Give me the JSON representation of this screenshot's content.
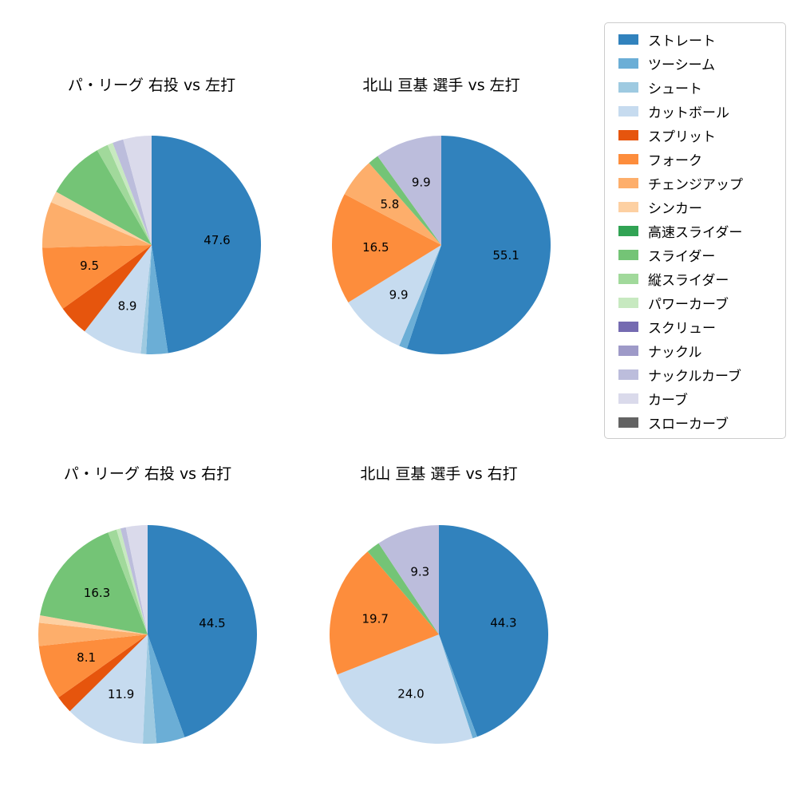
{
  "page": {
    "background": "#ffffff"
  },
  "legend": {
    "items": [
      {
        "label": "ストレート",
        "color": "#3182bd"
      },
      {
        "label": "ツーシーム",
        "color": "#6baed6"
      },
      {
        "label": "シュート",
        "color": "#9ecae1"
      },
      {
        "label": "カットボール",
        "color": "#c6dbef"
      },
      {
        "label": "スプリット",
        "color": "#e6550d"
      },
      {
        "label": "フォーク",
        "color": "#fd8d3c"
      },
      {
        "label": "チェンジアップ",
        "color": "#fdae6b"
      },
      {
        "label": "シンカー",
        "color": "#fdd0a2"
      },
      {
        "label": "高速スライダー",
        "color": "#31a354"
      },
      {
        "label": "スライダー",
        "color": "#74c476"
      },
      {
        "label": "縦スライダー",
        "color": "#a1d99b"
      },
      {
        "label": "パワーカーブ",
        "color": "#c7e9c0"
      },
      {
        "label": "スクリュー",
        "color": "#756bb1"
      },
      {
        "label": "ナックル",
        "color": "#9e9ac8"
      },
      {
        "label": "ナックルカーブ",
        "color": "#bcbddc"
      },
      {
        "label": "カーブ",
        "color": "#dadaeb"
      },
      {
        "label": "スローカーブ",
        "color": "#636363"
      }
    ]
  },
  "chart_data": [
    {
      "type": "pie",
      "title": "パ・リーグ 右投 vs 左打",
      "start_angle": "top",
      "direction": "clockwise",
      "slices": [
        {
          "name": "ストレート",
          "value": 47.6,
          "label": "47.6"
        },
        {
          "name": "ツーシーム",
          "value": 3.2,
          "label": null
        },
        {
          "name": "シュート",
          "value": 0.8,
          "label": null
        },
        {
          "name": "カットボール",
          "value": 8.9,
          "label": "8.9"
        },
        {
          "name": "スプリット",
          "value": 4.6,
          "label": null
        },
        {
          "name": "フォーク",
          "value": 9.5,
          "label": "9.5"
        },
        {
          "name": "チェンジアップ",
          "value": 6.8,
          "label": null
        },
        {
          "name": "シンカー",
          "value": 1.7,
          "label": null
        },
        {
          "name": "スライダー",
          "value": 8.6,
          "label": null
        },
        {
          "name": "縦スライダー",
          "value": 1.7,
          "label": null
        },
        {
          "name": "パワーカーブ",
          "value": 0.8,
          "label": null
        },
        {
          "name": "ナックルカーブ",
          "value": 1.6,
          "label": null
        },
        {
          "name": "カーブ",
          "value": 4.2,
          "label": null
        }
      ]
    },
    {
      "type": "pie",
      "title": "北山 亘基 選手 vs 左打",
      "start_angle": "top",
      "direction": "clockwise",
      "slices": [
        {
          "name": "ストレート",
          "value": 55.1,
          "label": "55.1"
        },
        {
          "name": "ツーシーム",
          "value": 1.2,
          "label": null
        },
        {
          "name": "カットボール",
          "value": 9.9,
          "label": "9.9"
        },
        {
          "name": "フォーク",
          "value": 16.5,
          "label": "16.5"
        },
        {
          "name": "チェンジアップ",
          "value": 5.8,
          "label": "5.8"
        },
        {
          "name": "スライダー",
          "value": 1.6,
          "label": null
        },
        {
          "name": "ナックルカーブ",
          "value": 9.9,
          "label": "9.9"
        }
      ]
    },
    {
      "type": "pie",
      "title": "パ・リーグ 右投 vs 右打",
      "start_angle": "top",
      "direction": "clockwise",
      "slices": [
        {
          "name": "ストレート",
          "value": 44.5,
          "label": "44.5"
        },
        {
          "name": "ツーシーム",
          "value": 4.2,
          "label": null
        },
        {
          "name": "シュート",
          "value": 2.0,
          "label": null
        },
        {
          "name": "カットボール",
          "value": 11.9,
          "label": "11.9"
        },
        {
          "name": "スプリット",
          "value": 2.6,
          "label": null
        },
        {
          "name": "フォーク",
          "value": 8.1,
          "label": "8.1"
        },
        {
          "name": "チェンジアップ",
          "value": 3.4,
          "label": null
        },
        {
          "name": "シンカー",
          "value": 1.1,
          "label": null
        },
        {
          "name": "スライダー",
          "value": 16.3,
          "label": "16.3"
        },
        {
          "name": "縦スライダー",
          "value": 1.3,
          "label": null
        },
        {
          "name": "パワーカーブ",
          "value": 0.6,
          "label": null
        },
        {
          "name": "ナックルカーブ",
          "value": 0.8,
          "label": null
        },
        {
          "name": "カーブ",
          "value": 3.2,
          "label": null
        }
      ]
    },
    {
      "type": "pie",
      "title": "北山 亘基 選手 vs 右打",
      "start_angle": "top",
      "direction": "clockwise",
      "slices": [
        {
          "name": "ストレート",
          "value": 44.3,
          "label": "44.3"
        },
        {
          "name": "ツーシーム",
          "value": 0.7,
          "label": null
        },
        {
          "name": "カットボール",
          "value": 24.0,
          "label": "24.0"
        },
        {
          "name": "フォーク",
          "value": 19.7,
          "label": "19.7"
        },
        {
          "name": "スライダー",
          "value": 2.0,
          "label": null
        },
        {
          "name": "ナックルカーブ",
          "value": 9.3,
          "label": "9.3"
        }
      ]
    }
  ]
}
